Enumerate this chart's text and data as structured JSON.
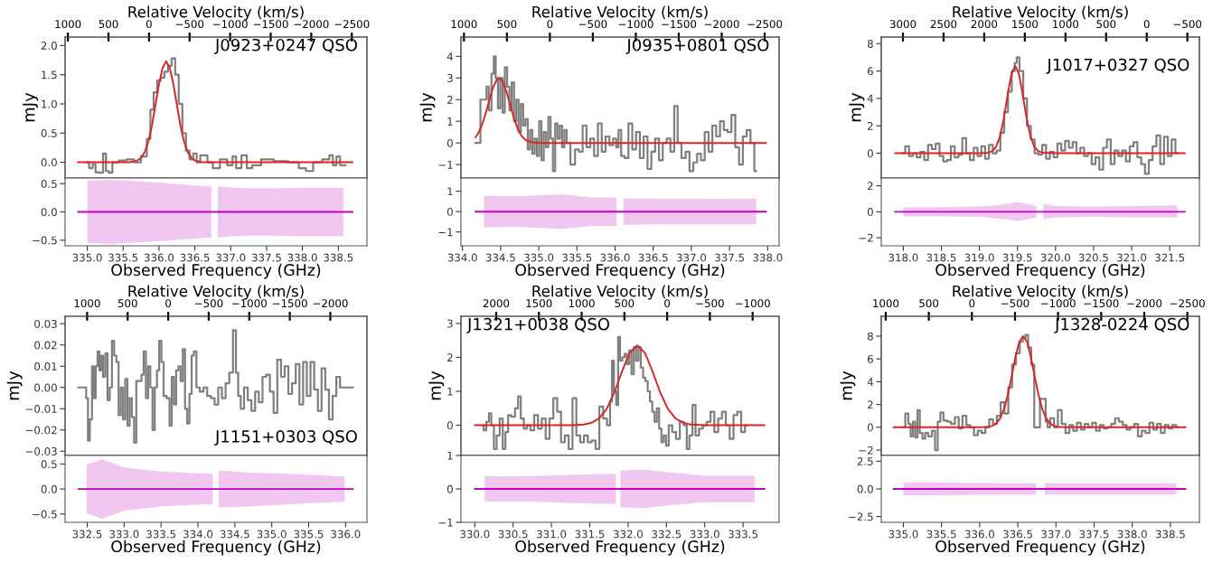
{
  "chart_data": [
    {
      "type": "step",
      "ylabel": "mJy",
      "x2label": "Relative Velocity (km/s)",
      "xlim": [
        334.69,
        338.9
      ],
      "ylim": [
        -0.27,
        2.145
      ],
      "yticks": [
        {
          "value": 0,
          "label": "0.0"
        },
        0.5,
        {
          "value": 1,
          "label": "1.0"
        },
        1.5,
        {
          "value": 2,
          "label": "2.0"
        }
      ],
      "x2lim": [
        1035,
        -2687
      ],
      "x2ticks": [
        1000,
        500,
        0,
        {
          "value": -500,
          "label": "−500"
        },
        {
          "value": -1000,
          "label": "−1000"
        },
        {
          "value": -1500,
          "label": "−1500"
        },
        {
          "value": -2000,
          "label": "−2000"
        },
        {
          "value": -2500,
          "label": "−2500"
        }
      ],
      "tick_labels": "y",
      "annotations": [
        "J0923+0247 QSO"
      ],
      "series": [
        {
          "color": "#7f7f7f",
          "x": [
            335.0,
            335.05,
            335.1,
            335.13,
            335.2,
            335.24,
            335.28,
            335.32,
            335.38,
            335.5,
            335.6,
            335.7,
            335.8,
            335.86,
            335.9,
            335.95,
            336.0,
            336.05,
            336.1,
            336.15,
            336.2,
            336.25,
            336.3,
            336.35,
            336.4,
            336.45,
            336.5,
            336.55,
            336.6,
            336.65,
            336.7,
            336.8,
            336.9,
            337.0,
            337.05,
            337.1,
            337.2,
            337.25,
            337.35,
            337.5,
            337.7,
            337.9,
            338.0,
            338.1,
            338.2,
            338.35,
            338.4,
            338.45,
            338.5,
            338.55,
            338.6
          ],
          "values": [
            0.0,
            -0.1,
            -0.03,
            -0.17,
            -0.18,
            0.15,
            -0.15,
            -0.18,
            0.0,
            0.03,
            0.05,
            0.0,
            0.1,
            0.4,
            0.9,
            1.2,
            1.4,
            1.45,
            1.55,
            1.65,
            1.78,
            1.5,
            1.0,
            0.5,
            0.2,
            0.05,
            0.15,
            0.0,
            0.12,
            0.12,
            0.0,
            -0.1,
            0.05,
            -0.05,
            0.1,
            -0.1,
            0.12,
            -0.1,
            -0.05,
            0.05,
            0.02,
            0.0,
            -0.1,
            -0.15,
            0.0,
            0.05,
            0.12,
            -0.05,
            0.1,
            -0.05,
            -0.05
          ]
        },
        {
          "type": "line",
          "color": "#d62728",
          "x": [
            334.87,
            335.6,
            335.7,
            335.75,
            335.8,
            335.85,
            335.9,
            335.95,
            336.0,
            336.05,
            336.1,
            336.15,
            336.2,
            336.25,
            336.3,
            336.35,
            336.4,
            336.45,
            336.5,
            336.6,
            338.7
          ],
          "values": [
            0,
            0,
            0.03,
            0.08,
            0.175,
            0.35,
            0.62,
            0.98,
            1.34,
            1.62,
            1.73,
            1.62,
            1.34,
            0.98,
            0.62,
            0.35,
            0.175,
            0.08,
            0.03,
            0,
            0
          ]
        }
      ]
    },
    {
      "type": "line",
      "xlabel": "Observed Frequency (GHz)",
      "xlim": [
        334.69,
        338.9
      ],
      "xticks": [
        {
          "value": 335,
          "label": "335.0"
        },
        335.5,
        {
          "value": 336,
          "label": "336.0"
        },
        336.5,
        {
          "value": 337,
          "label": "337.0"
        },
        337.5,
        {
          "value": 338,
          "label": "338.0"
        },
        338.5
      ],
      "ylim": [
        -0.6,
        0.6
      ],
      "yticks": [
        {
          "value": -0.5,
          "label": "−0.5"
        },
        {
          "value": 0,
          "label": "0.0"
        },
        0.5
      ],
      "series": [
        {
          "color": "#bf00bf",
          "x": [
            334.87,
            335.0,
            335.3,
            335.6,
            336.0,
            336.4,
            336.73,
            336.775,
            336.82,
            337.2,
            337.6,
            338.0,
            338.57,
            338.7
          ],
          "values": [
            0,
            0,
            0,
            0,
            0,
            0,
            0,
            0,
            0,
            0,
            0,
            0,
            0,
            0
          ],
          "upper": [
            null,
            0.55,
            0.57,
            0.55,
            0.52,
            0.48,
            0.45,
            null,
            0.45,
            0.42,
            0.42,
            0.43,
            0.43,
            null
          ],
          "lower": [
            null,
            -0.55,
            -0.57,
            -0.55,
            -0.52,
            -0.48,
            -0.45,
            null,
            -0.45,
            -0.42,
            -0.42,
            -0.43,
            -0.43,
            null
          ]
        }
      ]
    },
    {
      "type": "step",
      "ylabel": "mJy",
      "x2label": "Relative Velocity (km/s)",
      "xlim": [
        333.98,
        338.15
      ],
      "ylim": [
        -1.62,
        4.89
      ],
      "yticks": [
        {
          "value": -1,
          "label": "−1"
        },
        0,
        1,
        2,
        3,
        4
      ],
      "x2lim": [
        1035,
        -2668
      ],
      "x2ticks": [
        1000,
        500,
        0,
        {
          "value": -500,
          "label": "−500"
        },
        {
          "value": -1000,
          "label": "−1000"
        },
        {
          "value": -1500,
          "label": "−1500"
        },
        {
          "value": -2000,
          "label": "−2000"
        },
        {
          "value": -2500,
          "label": "−2500"
        }
      ],
      "tick_labels": "y",
      "annotations": [
        "J0935+0801 QSO"
      ],
      "series": [
        {
          "color": "#7f7f7f",
          "x": [
            334.17,
            334.3,
            334.33,
            334.36,
            334.4,
            334.42,
            334.45,
            334.48,
            334.51,
            334.54,
            334.57,
            334.6,
            334.63,
            334.66,
            334.69,
            334.72,
            334.75,
            334.78,
            334.81,
            334.84,
            334.87,
            334.9,
            334.93,
            334.96,
            334.99,
            335.02,
            335.05,
            335.08,
            335.11,
            335.14,
            335.17,
            335.2,
            335.23,
            335.26,
            335.29,
            335.32,
            335.35,
            335.38,
            335.45,
            335.5,
            335.55,
            335.6,
            335.65,
            335.7,
            335.75,
            335.8,
            335.85,
            335.9,
            335.95,
            336.0,
            336.03,
            336.06,
            336.1,
            336.15,
            336.2,
            336.25,
            336.3,
            336.35,
            336.4,
            336.45,
            336.5,
            336.55,
            336.6,
            336.65,
            336.7,
            336.75,
            336.8,
            336.84,
            336.9,
            336.95,
            337.0,
            337.05,
            337.1,
            337.15,
            337.2,
            337.25,
            337.3,
            337.35,
            337.4,
            337.45,
            337.5,
            337.55,
            337.6,
            337.65,
            337.7,
            337.75,
            337.8,
            337.85
          ],
          "values": [
            0,
            2.0,
            2.6,
            1.5,
            3.2,
            4.0,
            3.0,
            1.6,
            3.0,
            1.4,
            3.5,
            2.6,
            1.5,
            2.8,
            1.0,
            2.0,
            0.5,
            1.8,
            0.8,
            1.1,
            -0.3,
            0.6,
            -0.5,
            0.2,
            -0.6,
            1.0,
            -0.8,
            0.5,
            -0.2,
            1.2,
            0.2,
            -1.3,
            0.9,
            0.2,
            0.8,
            -0.2,
            0.6,
            0.0,
            -1.0,
            -0.3,
            -0.4,
            0.8,
            -0.2,
            0.2,
            -0.6,
            0.9,
            -0.4,
            0.3,
            -0.1,
            0.2,
            -0.2,
            0.6,
            -0.6,
            -0.7,
            0.9,
            -0.3,
            0.5,
            -0.7,
            0.3,
            -1.2,
            -0.4,
            0.2,
            -0.8,
            0.0,
            0.2,
            -0.4,
            1.7,
            0.0,
            -0.7,
            -0.4,
            -1.3,
            -0.9,
            -0.5,
            -0.8,
            0.5,
            -0.4,
            0.8,
            0.3,
            1.0,
            0.6,
            0.5,
            1.3,
            -0.2,
            -1.0,
            0.3,
            0.6,
            0.0,
            -1.3
          ]
        },
        {
          "type": "line",
          "color": "#d62728",
          "x": [
            334.17,
            334.2,
            334.25,
            334.3,
            334.35,
            334.4,
            334.45,
            334.48,
            334.53,
            334.58,
            334.63,
            334.68,
            334.73,
            334.78,
            334.83,
            334.9,
            335.0,
            337.98
          ],
          "values": [
            0.26,
            0.41,
            0.78,
            1.31,
            1.95,
            2.55,
            2.93,
            3.0,
            2.82,
            2.33,
            1.69,
            1.08,
            0.61,
            0.3,
            0.13,
            0.03,
            0,
            0
          ]
        }
      ]
    },
    {
      "type": "line",
      "xlabel": "Observed Frequency (GHz)",
      "xlim": [
        333.98,
        338.15
      ],
      "xticks": [
        {
          "value": 334,
          "label": "334.0"
        },
        334.5,
        {
          "value": 335,
          "label": "335.0"
        },
        335.5,
        {
          "value": 336,
          "label": "336.0"
        },
        336.5,
        {
          "value": 337,
          "label": "337.0"
        },
        337.5,
        {
          "value": 338,
          "label": "338.0"
        }
      ],
      "ylim": [
        -1.68,
        1.65
      ],
      "yticks": [
        {
          "value": -1,
          "label": "−1"
        },
        0,
        1
      ],
      "series": [
        {
          "color": "#bf00bf",
          "x": [
            334.17,
            334.28,
            334.7,
            335.3,
            335.7,
            336.02,
            336.065,
            336.11,
            336.6,
            337.2,
            337.85,
            337.98
          ],
          "values": [
            0,
            0,
            0,
            0,
            0,
            0,
            0,
            0,
            0,
            0,
            0,
            0
          ],
          "upper": [
            null,
            0.78,
            0.75,
            0.85,
            0.7,
            0.7,
            null,
            0.65,
            0.63,
            0.62,
            0.63,
            null
          ],
          "lower": [
            null,
            -0.78,
            -0.75,
            -0.85,
            -0.7,
            -0.7,
            null,
            -0.65,
            -0.63,
            -0.62,
            -0.63,
            null
          ]
        }
      ]
    },
    {
      "type": "step",
      "ylabel": "mJy",
      "x2label": "Relative Velocity (km/s)",
      "xlim": [
        317.71,
        321.89
      ],
      "ylim": [
        -1.81,
        8.48
      ],
      "yticks": [
        0,
        2,
        4,
        6,
        8
      ],
      "x2lim": [
        3267,
        -648
      ],
      "x2ticks": [
        3000,
        2500,
        2000,
        1500,
        1000,
        500,
        0,
        {
          "value": -500,
          "label": "−500"
        }
      ],
      "tick_labels": "y",
      "annotations": [
        "J1017+0327 QSO"
      ],
      "series": [
        {
          "color": "#7f7f7f",
          "x": [
            318.0,
            318.05,
            318.1,
            318.15,
            318.2,
            318.25,
            318.3,
            318.35,
            318.4,
            318.45,
            318.5,
            318.55,
            318.6,
            318.65,
            318.7,
            318.75,
            318.8,
            318.85,
            318.9,
            318.95,
            319.0,
            319.05,
            319.1,
            319.15,
            319.2,
            319.25,
            319.3,
            319.35,
            319.4,
            319.45,
            319.48,
            319.5,
            319.55,
            319.6,
            319.65,
            319.7,
            319.75,
            319.8,
            319.85,
            319.9,
            319.95,
            320.0,
            320.05,
            320.1,
            320.15,
            320.2,
            320.25,
            320.3,
            320.35,
            320.4,
            320.45,
            320.5,
            320.55,
            320.6,
            320.65,
            320.7,
            320.75,
            320.8,
            320.85,
            320.9,
            320.95,
            321.0,
            321.05,
            321.1,
            321.15,
            321.2,
            321.25,
            321.3,
            321.35,
            321.4,
            321.45,
            321.5,
            321.55,
            321.6
          ],
          "values": [
            0,
            0.5,
            -0.2,
            0.0,
            -0.3,
            0.1,
            -0.5,
            0.6,
            0.3,
            0.7,
            -0.2,
            -0.6,
            -0.5,
            0.5,
            -0.3,
            -0.1,
            1.1,
            0.0,
            -0.5,
            0.4,
            -0.2,
            0.5,
            -0.4,
            0.6,
            0.0,
            0.2,
            1.5,
            3.0,
            4.5,
            6.0,
            6.6,
            7.0,
            6.0,
            4.0,
            2.0,
            1.0,
            0.0,
            -0.1,
            0.6,
            -0.4,
            0.1,
            -0.3,
            0.7,
            0.2,
            0.9,
            0.4,
            0.8,
            0.0,
            0.4,
            -0.2,
            0.0,
            -0.8,
            -0.3,
            -1.2,
            0.4,
            1.0,
            -0.8,
            0.2,
            -0.2,
            0.2,
            -0.6,
            0.5,
            0.8,
            -0.3,
            -0.8,
            -1.5,
            -0.5,
            0.5,
            1.3,
            -0.8,
            1.2,
            -0.2,
            1.0,
            0.0
          ]
        },
        {
          "type": "line",
          "color": "#d62728",
          "x": [
            317.89,
            319.0,
            319.12,
            319.17,
            319.22,
            319.27,
            319.32,
            319.37,
            319.42,
            319.47,
            319.52,
            319.57,
            319.62,
            319.67,
            319.72,
            319.77,
            319.82,
            320.0,
            321.7
          ],
          "values": [
            0,
            0,
            0.04,
            0.16,
            0.49,
            1.23,
            2.53,
            4.24,
            5.77,
            6.4,
            5.77,
            4.24,
            2.53,
            1.23,
            0.49,
            0.16,
            0.04,
            0,
            0
          ]
        }
      ]
    },
    {
      "type": "line",
      "xlabel": "Observed Frequency (GHz)",
      "xlim": [
        317.71,
        321.89
      ],
      "xticks": [
        {
          "value": 318,
          "label": "318.0"
        },
        318.5,
        {
          "value": 319,
          "label": "319.0"
        },
        319.5,
        {
          "value": 320,
          "label": "320.0"
        },
        320.5,
        {
          "value": 321,
          "label": "321.0"
        },
        321.5
      ],
      "ylim": [
        -2.62,
        2.6
      ],
      "yticks": [
        {
          "value": -2,
          "label": "−2"
        },
        0,
        2
      ],
      "series": [
        {
          "color": "#bf00bf",
          "x": [
            317.89,
            318.0,
            318.5,
            319.0,
            319.3,
            319.5,
            319.75,
            319.795,
            319.84,
            320.0,
            320.5,
            321.0,
            321.6,
            321.7
          ],
          "values": [
            0,
            0,
            0,
            0,
            0,
            0,
            0,
            0,
            0,
            0,
            0,
            0,
            0,
            0
          ],
          "upper": [
            null,
            0.35,
            0.35,
            0.4,
            0.55,
            0.75,
            0.45,
            null,
            0.6,
            0.45,
            0.4,
            0.45,
            0.5,
            null
          ],
          "lower": [
            null,
            -0.35,
            -0.35,
            -0.4,
            -0.55,
            -0.7,
            -0.45,
            null,
            -0.55,
            -0.45,
            -0.4,
            -0.45,
            -0.45,
            null
          ]
        }
      ]
    },
    {
      "type": "step",
      "ylabel": "mJy",
      "x2label": "Relative Velocity (km/s)",
      "xlim": [
        332.2,
        336.29
      ],
      "ylim": [
        -0.032,
        0.0335
      ],
      "yticks": [
        {
          "value": -0.03,
          "label": "−0.03"
        },
        {
          "value": -0.02,
          "label": "−0.02"
        },
        {
          "value": -0.01,
          "label": "−0.01"
        },
        {
          "value": 0,
          "label": "0.00"
        },
        0.01,
        0.02,
        0.03
      ],
      "x2lim": [
        1272,
        -2452
      ],
      "x2ticks": [
        1000,
        500,
        0,
        {
          "value": -500,
          "label": "−500"
        },
        {
          "value": -1000,
          "label": "−1000"
        },
        {
          "value": -1500,
          "label": "−1500"
        },
        {
          "value": -2000,
          "label": "−2000"
        }
      ],
      "tick_labels": "y",
      "annotations": [
        "J1151+0303 QSO"
      ],
      "series": [
        {
          "color": "#7f7f7f",
          "x": [
            332.38,
            332.47,
            332.5,
            332.52,
            332.55,
            332.58,
            332.6,
            332.63,
            332.65,
            332.68,
            332.7,
            332.73,
            332.76,
            332.79,
            332.82,
            332.85,
            332.88,
            332.91,
            332.94,
            332.97,
            333.0,
            333.03,
            333.06,
            333.09,
            333.12,
            333.15,
            333.18,
            333.22,
            333.25,
            333.28,
            333.31,
            333.34,
            333.37,
            333.4,
            333.43,
            333.46,
            333.49,
            333.52,
            333.55,
            333.6,
            333.63,
            333.66,
            333.69,
            333.72,
            333.75,
            333.78,
            333.81,
            333.84,
            333.87,
            333.9,
            333.93,
            333.96,
            334.0,
            334.05,
            334.1,
            334.15,
            334.2,
            334.25,
            334.3,
            334.35,
            334.4,
            334.45,
            334.5,
            334.53,
            334.56,
            334.6,
            334.65,
            334.7,
            334.75,
            334.8,
            334.85,
            334.9,
            334.95,
            335.0,
            335.05,
            335.1,
            335.15,
            335.2,
            335.25,
            335.3,
            335.35,
            335.4,
            335.45,
            335.5,
            335.55,
            335.6,
            335.65,
            335.7,
            335.75,
            335.8,
            335.85,
            335.9,
            335.95,
            336.1
          ],
          "values": [
            0.0,
            0.0,
            -0.005,
            -0.025,
            -0.015,
            0.01,
            -0.005,
            0.01,
            0.017,
            0.008,
            0.015,
            0.005,
            0.016,
            -0.006,
            0.0,
            0.022,
            0.015,
            0.012,
            -0.013,
            0.0,
            -0.015,
            0.004,
            -0.018,
            -0.005,
            -0.014,
            -0.026,
            0.003,
            0.003,
            0.006,
            0.017,
            -0.005,
            0.01,
            0.0,
            -0.02,
            0.0,
            0.008,
            0.022,
            0.012,
            -0.004,
            -0.005,
            -0.018,
            0.005,
            -0.008,
            0.008,
            0.01,
            0.003,
            0.018,
            -0.01,
            -0.017,
            -0.003,
            0.015,
            0.017,
            0.0,
            -0.002,
            0.0,
            -0.004,
            -0.005,
            -0.008,
            0.0,
            -0.005,
            0.002,
            0.007,
            0.027,
            0.007,
            -0.004,
            -0.01,
            0.0,
            -0.006,
            -0.011,
            -0.002,
            -0.007,
            0.005,
            0.006,
            -0.002,
            -0.012,
            0.013,
            0.005,
            0.01,
            -0.003,
            0.002,
            0.011,
            -0.008,
            0.012,
            -0.004,
            0.012,
            -0.001,
            -0.011,
            0.009,
            -0.001,
            -0.015,
            -0.004,
            0.005,
            0.0,
            0.0
          ]
        }
      ]
    },
    {
      "type": "line",
      "xlabel": "Observed Frequency (GHz)",
      "xlim": [
        332.2,
        336.29
      ],
      "xticks": [
        332.5,
        {
          "value": 333,
          "label": "333.0"
        },
        333.5,
        {
          "value": 334,
          "label": "334.0"
        },
        334.5,
        {
          "value": 335,
          "label": "335.0"
        },
        335.5,
        {
          "value": 336,
          "label": "336.0"
        }
      ],
      "ylim": [
        -0.667,
        0.672
      ],
      "yticks": [
        {
          "value": -0.5,
          "label": "−0.5"
        },
        {
          "value": 0,
          "label": "0.0"
        },
        0.5
      ],
      "series": [
        {
          "color": "#bf00bf",
          "x": [
            332.38,
            332.49,
            332.7,
            333.0,
            333.5,
            334.2,
            334.24,
            334.28,
            334.7,
            335.3,
            335.99,
            336.1
          ],
          "values": [
            0,
            0,
            0,
            0,
            0,
            0,
            0,
            0,
            0,
            0,
            0,
            0
          ],
          "upper": [
            null,
            0.48,
            0.6,
            0.43,
            0.35,
            0.3,
            null,
            0.37,
            0.33,
            0.3,
            0.25,
            null
          ],
          "lower": [
            null,
            -0.48,
            -0.6,
            -0.43,
            -0.35,
            -0.3,
            null,
            -0.37,
            -0.35,
            -0.3,
            -0.25,
            null
          ]
        }
      ]
    },
    {
      "type": "step",
      "ylabel": "mJy",
      "x2label": "Relative Velocity (km/s)",
      "xlim": [
        329.82,
        333.97
      ],
      "ylim": [
        -0.89,
        3.21
      ],
      "yticks": [
        0,
        1,
        2,
        3
      ],
      "x2lim": [
        2412,
        -1310
      ],
      "x2ticks": [
        2000,
        1500,
        1000,
        500,
        0,
        {
          "value": -500,
          "label": "−500"
        },
        {
          "value": -1000,
          "label": "−1000"
        }
      ],
      "tick_labels": "y",
      "annotations": [
        "J1321+0038 QSO"
      ],
      "series": [
        {
          "color": "#7f7f7f",
          "x": [
            330.1,
            330.13,
            330.17,
            330.2,
            330.23,
            330.27,
            330.3,
            330.35,
            330.38,
            330.42,
            330.45,
            330.5,
            330.55,
            330.58,
            330.62,
            330.66,
            330.7,
            330.75,
            330.8,
            330.85,
            330.9,
            330.95,
            331.0,
            331.05,
            331.1,
            331.15,
            331.2,
            331.25,
            331.3,
            331.35,
            331.4,
            331.45,
            331.5,
            331.55,
            331.6,
            331.65,
            331.7,
            331.75,
            331.78,
            331.8,
            331.83,
            331.86,
            331.88,
            331.91,
            331.94,
            331.97,
            332.0,
            332.03,
            332.06,
            332.09,
            332.12,
            332.15,
            332.18,
            332.21,
            332.24,
            332.27,
            332.3,
            332.33,
            332.36,
            332.39,
            332.42,
            332.45,
            332.48,
            332.51,
            332.55,
            332.6,
            332.65,
            332.7,
            332.75,
            332.78,
            332.82,
            332.86,
            332.9,
            332.95,
            333.0,
            333.05,
            333.1,
            333.15,
            333.2,
            333.25,
            333.3,
            333.35,
            333.4,
            333.45,
            333.5,
            333.55
          ],
          "values": [
            0.0,
            -0.15,
            0.1,
            0.35,
            0.0,
            -0.7,
            -0.3,
            0.2,
            -0.7,
            -0.2,
            0.3,
            0.25,
            0.5,
            0.85,
            0.2,
            -0.1,
            0.0,
            -0.15,
            0.3,
            -0.1,
            0.2,
            -0.4,
            0.2,
            0.8,
            0.4,
            -0.5,
            -0.3,
            -0.7,
            0.8,
            -0.3,
            -0.5,
            -0.3,
            -0.5,
            -0.45,
            -0.7,
            0.55,
            0.2,
            0.0,
            0.7,
            1.9,
            1.0,
            0.6,
            2.6,
            1.9,
            2.0,
            2.1,
            1.8,
            2.2,
            1.5,
            2.3,
            1.9,
            2.3,
            1.7,
            1.4,
            1.3,
            1.0,
            0.7,
            0.4,
            0.1,
            0.5,
            -0.1,
            -0.5,
            -0.3,
            -0.6,
            0.0,
            -0.2,
            -0.4,
            0.1,
            0.0,
            -0.7,
            -0.3,
            0.6,
            -0.3,
            -0.1,
            0.0,
            0.1,
            0.4,
            -0.2,
            0.2,
            0.4,
            0.0,
            -0.4,
            0.3,
            0.4,
            -0.2,
            0.0
          ]
        },
        {
          "type": "line",
          "color": "#d62728",
          "x": [
            330.0,
            331.3,
            331.42,
            331.52,
            331.62,
            331.72,
            331.82,
            331.92,
            332.02,
            332.12,
            332.22,
            332.32,
            332.42,
            332.52,
            332.62,
            332.72,
            332.82,
            333.0,
            333.78
          ],
          "values": [
            0,
            0,
            0.02,
            0.07,
            0.2,
            0.48,
            0.96,
            1.58,
            2.13,
            2.35,
            2.13,
            1.58,
            0.96,
            0.48,
            0.2,
            0.07,
            0.02,
            0,
            0
          ]
        }
      ]
    },
    {
      "type": "line",
      "xlabel": "Observed Frequency (GHz)",
      "xlim": [
        329.82,
        333.97
      ],
      "xticks": [
        {
          "value": 330,
          "label": "330.0"
        },
        330.5,
        {
          "value": 331,
          "label": "331.0"
        },
        331.5,
        {
          "value": 332,
          "label": "332.0"
        },
        332.5,
        {
          "value": 333,
          "label": "333.0"
        },
        333.5
      ],
      "ylim": [
        -1,
        1
      ],
      "yticks": [
        {
          "value": -1,
          "label": "−1"
        },
        0,
        1
      ],
      "series": [
        {
          "color": "#bf00bf",
          "x": [
            330.0,
            330.13,
            330.7,
            331.2,
            331.84,
            331.87,
            331.9,
            332.2,
            332.5,
            333.0,
            333.65,
            333.78
          ],
          "values": [
            0,
            0,
            0,
            0,
            0,
            0,
            0,
            0,
            0,
            0,
            0,
            0
          ],
          "upper": [
            null,
            0.38,
            0.38,
            0.42,
            0.45,
            null,
            0.55,
            0.58,
            0.5,
            0.4,
            0.4,
            null
          ],
          "lower": [
            null,
            -0.38,
            -0.38,
            -0.42,
            -0.45,
            null,
            -0.55,
            -0.58,
            -0.5,
            -0.4,
            -0.4,
            null
          ]
        }
      ]
    },
    {
      "type": "step",
      "ylabel": "mJy",
      "x2label": "Relative Velocity (km/s)",
      "xlim": [
        334.71,
        338.88
      ],
      "ylim": [
        -2.47,
        9.74
      ],
      "yticks": [
        {
          "value": -2,
          "label": "−2"
        },
        0,
        2,
        4,
        6,
        8
      ],
      "x2lim": [
        1052,
        -2640
      ],
      "x2ticks": [
        1000,
        500,
        0,
        {
          "value": -500,
          "label": "−500"
        },
        {
          "value": -1000,
          "label": "−1000"
        },
        {
          "value": -1500,
          "label": "−1500"
        },
        {
          "value": -2000,
          "label": "−2000"
        },
        {
          "value": -2500,
          "label": "−2500"
        }
      ],
      "tick_labels": "y",
      "annotations": [
        "J1328-0224 QSO"
      ],
      "series": [
        {
          "color": "#7f7f7f",
          "x": [
            335.0,
            335.05,
            335.08,
            335.11,
            335.14,
            335.17,
            335.2,
            335.23,
            335.27,
            335.3,
            335.35,
            335.4,
            335.43,
            335.47,
            335.5,
            335.55,
            335.6,
            335.65,
            335.7,
            335.75,
            335.8,
            335.85,
            335.9,
            335.95,
            336.0,
            336.05,
            336.1,
            336.15,
            336.2,
            336.25,
            336.3,
            336.35,
            336.4,
            336.45,
            336.5,
            336.55,
            336.58,
            336.62,
            336.65,
            336.7,
            336.73,
            336.85,
            336.88,
            336.9,
            336.95,
            337.0,
            337.05,
            337.1,
            337.15,
            337.2,
            337.25,
            337.3,
            337.35,
            337.4,
            337.45,
            337.5,
            337.55,
            337.6,
            337.65,
            337.7,
            337.75,
            337.8,
            337.85,
            337.9,
            337.95,
            338.0,
            338.05,
            338.1,
            338.15,
            338.2,
            338.25,
            338.3,
            338.35,
            338.4,
            338.45,
            338.5,
            338.55,
            338.6
          ],
          "values": [
            0.0,
            1.2,
            0.3,
            -0.8,
            0.5,
            -0.9,
            1.5,
            -0.5,
            -1.0,
            -0.5,
            -0.8,
            -0.3,
            -2.0,
            0.5,
            1.3,
            0.6,
            0.5,
            0.3,
            0.9,
            -0.1,
            1.0,
            0.2,
            0.0,
            -0.7,
            -0.3,
            -0.5,
            0.0,
            0.7,
            0.3,
            1.0,
            2.2,
            1.2,
            3.5,
            5.5,
            6.5,
            7.5,
            7.8,
            8.1,
            7.0,
            5.5,
            0.0,
            2.5,
            0.5,
            0.0,
            0.8,
            0.0,
            1.5,
            0.3,
            -0.5,
            0.2,
            -0.3,
            0.4,
            -0.2,
            0.3,
            0.0,
            0.4,
            -0.3,
            0.2,
            -0.1,
            0.0,
            0.3,
            0.8,
            0.5,
            0.2,
            -0.2,
            0.0,
            0.3,
            -0.8,
            -0.3,
            -0.5,
            0.4,
            -0.2,
            0.3,
            -0.5,
            0.2,
            -0.1,
            0.2,
            0.0
          ]
        },
        {
          "type": "line",
          "color": "#d62728",
          "x": [
            334.87,
            336.0,
            336.12,
            336.17,
            336.22,
            336.27,
            336.32,
            336.37,
            336.42,
            336.47,
            336.52,
            336.57,
            336.62,
            336.67,
            336.72,
            336.77,
            336.82,
            336.87,
            336.92,
            336.97,
            337.02,
            337.15,
            338.7
          ],
          "values": [
            0,
            0,
            0.05,
            0.14,
            0.35,
            0.81,
            1.62,
            2.88,
            4.5,
            6.2,
            7.52,
            8.0,
            7.52,
            6.2,
            4.5,
            2.88,
            1.62,
            0.81,
            0.35,
            0.14,
            0.05,
            0,
            0
          ]
        }
      ]
    },
    {
      "type": "line",
      "xlabel": "Observed Frequency (GHz)",
      "xlim": [
        334.71,
        338.88
      ],
      "xticks": [
        {
          "value": 335,
          "label": "335.0"
        },
        335.5,
        {
          "value": 336,
          "label": "336.0"
        },
        336.5,
        {
          "value": 337,
          "label": "337.0"
        },
        337.5,
        {
          "value": 338,
          "label": "338.0"
        },
        338.5
      ],
      "ylim": [
        -3.02,
        3.02
      ],
      "yticks": [
        {
          "value": -2.5,
          "label": "−2.5"
        },
        {
          "value": 0,
          "label": "0.0"
        },
        2.5
      ],
      "series": [
        {
          "color": "#bf00bf",
          "x": [
            334.87,
            335.0,
            335.3,
            335.8,
            336.3,
            336.74,
            336.8,
            336.85,
            337.5,
            338.58,
            338.7
          ],
          "values": [
            0,
            0,
            0,
            0,
            0,
            0,
            0,
            0,
            0,
            0,
            0
          ],
          "upper": [
            null,
            0.55,
            0.6,
            0.55,
            0.5,
            0.5,
            null,
            0.5,
            0.5,
            0.5,
            null
          ],
          "lower": [
            null,
            -0.55,
            -0.6,
            -0.55,
            -0.5,
            -0.5,
            null,
            -0.5,
            -0.5,
            -0.5,
            null
          ]
        }
      ]
    }
  ]
}
